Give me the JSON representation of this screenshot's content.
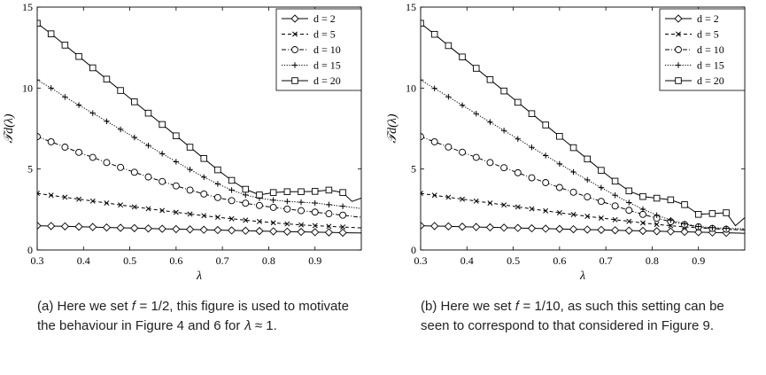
{
  "chart_data": [
    {
      "type": "line",
      "xlabel": "λ",
      "ylabel": "𝒯d(λ)",
      "xlim": [
        0.3,
        1.0
      ],
      "ylim": [
        0,
        15
      ],
      "xticks": [
        0.3,
        0.4,
        0.5,
        0.6,
        0.7,
        0.8,
        0.9
      ],
      "yticks": [
        0,
        5,
        10,
        15
      ],
      "legend_position": "top-right",
      "series": [
        {
          "name": "d = 2",
          "marker": "diamond",
          "dash": "solid",
          "x": [
            0.3,
            0.33,
            0.36,
            0.39,
            0.42,
            0.45,
            0.48,
            0.51,
            0.54,
            0.57,
            0.6,
            0.63,
            0.66,
            0.69,
            0.72,
            0.75,
            0.78,
            0.81,
            0.84,
            0.87,
            0.9,
            0.93,
            0.96,
            0.99,
            1.0
          ],
          "y": [
            1.5,
            1.48,
            1.46,
            1.44,
            1.42,
            1.39,
            1.37,
            1.35,
            1.33,
            1.31,
            1.29,
            1.27,
            1.25,
            1.23,
            1.21,
            1.19,
            1.17,
            1.15,
            1.13,
            1.12,
            1.1,
            1.09,
            1.07,
            1.05,
            1.05
          ]
        },
        {
          "name": "d = 5",
          "marker": "x",
          "dash": "dashed",
          "x": [
            0.3,
            0.33,
            0.36,
            0.39,
            0.42,
            0.45,
            0.48,
            0.51,
            0.54,
            0.57,
            0.6,
            0.63,
            0.66,
            0.69,
            0.72,
            0.75,
            0.78,
            0.81,
            0.84,
            0.87,
            0.9,
            0.93,
            0.96,
            0.99,
            1.0
          ],
          "y": [
            3.5,
            3.38,
            3.26,
            3.14,
            3.02,
            2.9,
            2.78,
            2.66,
            2.55,
            2.44,
            2.33,
            2.22,
            2.12,
            2.02,
            1.93,
            1.84,
            1.76,
            1.68,
            1.61,
            1.55,
            1.5,
            1.46,
            1.42,
            1.38,
            1.37
          ]
        },
        {
          "name": "d = 10",
          "marker": "circle",
          "dash": "dashdot",
          "x": [
            0.3,
            0.33,
            0.36,
            0.39,
            0.42,
            0.45,
            0.48,
            0.51,
            0.54,
            0.57,
            0.6,
            0.63,
            0.66,
            0.69,
            0.72,
            0.75,
            0.78,
            0.81,
            0.84,
            0.87,
            0.9,
            0.93,
            0.96,
            0.99,
            1.0
          ],
          "y": [
            7.0,
            6.68,
            6.35,
            6.03,
            5.72,
            5.4,
            5.1,
            4.8,
            4.51,
            4.23,
            3.96,
            3.7,
            3.46,
            3.24,
            3.05,
            2.89,
            2.75,
            2.63,
            2.53,
            2.43,
            2.34,
            2.24,
            2.15,
            2.05,
            2.02
          ]
        },
        {
          "name": "d = 15",
          "marker": "plus",
          "dash": "dotted",
          "x": [
            0.3,
            0.33,
            0.36,
            0.39,
            0.42,
            0.45,
            0.48,
            0.51,
            0.54,
            0.57,
            0.6,
            0.63,
            0.66,
            0.69,
            0.72,
            0.75,
            0.78,
            0.81,
            0.84,
            0.87,
            0.9,
            0.93,
            0.96,
            0.99,
            1.0
          ],
          "y": [
            10.5,
            10.0,
            9.45,
            8.95,
            8.45,
            7.95,
            7.45,
            6.95,
            6.45,
            5.95,
            5.45,
            4.97,
            4.5,
            4.08,
            3.7,
            3.4,
            3.2,
            3.08,
            3.0,
            2.95,
            2.9,
            2.8,
            2.7,
            2.6,
            2.55
          ]
        },
        {
          "name": "d = 20",
          "marker": "square",
          "dash": "solid",
          "x": [
            0.3,
            0.33,
            0.36,
            0.39,
            0.42,
            0.45,
            0.48,
            0.51,
            0.54,
            0.57,
            0.6,
            0.63,
            0.66,
            0.69,
            0.72,
            0.75,
            0.78,
            0.81,
            0.84,
            0.87,
            0.9,
            0.93,
            0.96,
            0.98,
            1.0
          ],
          "y": [
            14.0,
            13.35,
            12.65,
            11.95,
            11.25,
            10.55,
            9.85,
            9.15,
            8.45,
            7.75,
            7.05,
            6.35,
            5.65,
            4.95,
            4.3,
            3.75,
            3.4,
            3.55,
            3.6,
            3.6,
            3.62,
            3.7,
            3.55,
            3.0,
            3.2
          ]
        }
      ]
    },
    {
      "type": "line",
      "xlabel": "λ",
      "ylabel": "𝒯d(λ)",
      "xlim": [
        0.3,
        1.0
      ],
      "ylim": [
        0,
        15
      ],
      "xticks": [
        0.3,
        0.4,
        0.5,
        0.6,
        0.7,
        0.8,
        0.9
      ],
      "yticks": [
        0,
        5,
        10,
        15
      ],
      "legend_position": "top-right",
      "series": [
        {
          "name": "d = 2",
          "marker": "diamond",
          "dash": "solid",
          "x": [
            0.3,
            0.33,
            0.36,
            0.39,
            0.42,
            0.45,
            0.48,
            0.51,
            0.54,
            0.57,
            0.6,
            0.63,
            0.66,
            0.69,
            0.72,
            0.75,
            0.78,
            0.81,
            0.84,
            0.87,
            0.9,
            0.93,
            0.96,
            0.99,
            1.0
          ],
          "y": [
            1.5,
            1.48,
            1.46,
            1.44,
            1.42,
            1.4,
            1.38,
            1.36,
            1.34,
            1.32,
            1.3,
            1.28,
            1.26,
            1.24,
            1.22,
            1.2,
            1.18,
            1.16,
            1.14,
            1.12,
            1.1,
            1.08,
            1.06,
            1.04,
            1.03
          ]
        },
        {
          "name": "d = 5",
          "marker": "x",
          "dash": "dashed",
          "x": [
            0.3,
            0.33,
            0.36,
            0.39,
            0.42,
            0.45,
            0.48,
            0.51,
            0.54,
            0.57,
            0.6,
            0.63,
            0.66,
            0.69,
            0.72,
            0.75,
            0.78,
            0.81,
            0.84,
            0.87,
            0.9,
            0.93,
            0.96,
            0.99,
            1.0
          ],
          "y": [
            3.5,
            3.38,
            3.26,
            3.14,
            3.02,
            2.9,
            2.78,
            2.66,
            2.54,
            2.42,
            2.3,
            2.19,
            2.08,
            1.97,
            1.87,
            1.77,
            1.67,
            1.58,
            1.5,
            1.43,
            1.37,
            1.32,
            1.28,
            1.25,
            1.24
          ]
        },
        {
          "name": "d = 10",
          "marker": "circle",
          "dash": "dashdot",
          "x": [
            0.3,
            0.33,
            0.36,
            0.39,
            0.42,
            0.45,
            0.48,
            0.51,
            0.54,
            0.57,
            0.6,
            0.63,
            0.66,
            0.69,
            0.72,
            0.75,
            0.78,
            0.81,
            0.84,
            0.87,
            0.9,
            0.93,
            0.96,
            0.99,
            1.0
          ],
          "y": [
            7.0,
            6.68,
            6.36,
            6.04,
            5.72,
            5.4,
            5.08,
            4.77,
            4.46,
            4.16,
            3.86,
            3.57,
            3.28,
            3.0,
            2.72,
            2.45,
            2.2,
            1.96,
            1.75,
            1.57,
            1.43,
            1.33,
            1.28,
            1.25,
            1.24
          ]
        },
        {
          "name": "d = 15",
          "marker": "plus",
          "dash": "dotted",
          "x": [
            0.3,
            0.33,
            0.36,
            0.39,
            0.42,
            0.45,
            0.48,
            0.51,
            0.54,
            0.57,
            0.6,
            0.63,
            0.66,
            0.69,
            0.72,
            0.75,
            0.78,
            0.81,
            0.84,
            0.87,
            0.9,
            0.93,
            0.96,
            0.99,
            1.0
          ],
          "y": [
            10.5,
            9.98,
            9.46,
            8.94,
            8.42,
            7.9,
            7.38,
            6.86,
            6.34,
            5.83,
            5.32,
            4.82,
            4.33,
            3.85,
            3.38,
            2.93,
            2.52,
            2.15,
            1.85,
            1.62,
            1.45,
            1.38,
            1.34,
            1.32,
            1.32
          ]
        },
        {
          "name": "d = 20",
          "marker": "square",
          "dash": "solid",
          "x": [
            0.3,
            0.33,
            0.36,
            0.39,
            0.42,
            0.45,
            0.48,
            0.51,
            0.54,
            0.57,
            0.6,
            0.63,
            0.66,
            0.69,
            0.72,
            0.75,
            0.78,
            0.81,
            0.84,
            0.87,
            0.9,
            0.93,
            0.96,
            0.98,
            1.0
          ],
          "y": [
            14.0,
            13.32,
            12.62,
            11.92,
            11.22,
            10.52,
            9.82,
            9.12,
            8.42,
            7.72,
            7.02,
            6.32,
            5.62,
            4.92,
            4.25,
            3.65,
            3.3,
            3.2,
            3.1,
            2.8,
            2.2,
            2.25,
            2.3,
            1.5,
            2.0
          ]
        }
      ]
    }
  ],
  "captions": [
    "(a) Here we set 𝑓 = 1/2, this figure is used to motivate the behaviour in Figure 4 and 6 for 𝜆 ≈ 1.",
    "(b) Here we set 𝑓 = 1/10, as such this setting can be seen to correspond to that considered in Figure 9."
  ],
  "legend_entries": [
    "d = 2",
    "d = 5",
    "d = 10",
    "d = 15",
    "d = 20"
  ]
}
